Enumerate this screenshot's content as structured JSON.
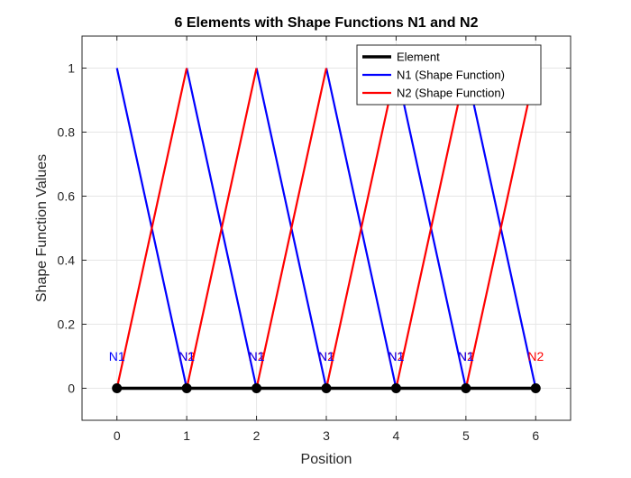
{
  "chart_data": {
    "type": "line",
    "title": "6 Elements with Shape Functions N1 and N2",
    "xlabel": "Position",
    "ylabel": "Shape Function Values",
    "xlim": [
      -0.5,
      6.5
    ],
    "ylim": [
      -0.1,
      1.1
    ],
    "xticks": [
      0,
      1,
      2,
      3,
      4,
      5,
      6
    ],
    "yticks": [
      0,
      0.2,
      0.4,
      0.6,
      0.8,
      1
    ],
    "xtick_labels": [
      "0",
      "1",
      "2",
      "3",
      "4",
      "5",
      "6"
    ],
    "ytick_labels": [
      "0",
      "0.2",
      "0.4",
      "0.6",
      "0.8",
      "1"
    ],
    "grid": true,
    "legend_position": "top-right",
    "series": [
      {
        "name": "Element",
        "color": "#000000",
        "x": [
          0,
          1,
          2,
          3,
          4,
          5,
          6
        ],
        "y": [
          0,
          0,
          0,
          0,
          0,
          0,
          0
        ]
      },
      {
        "name": "N1 (Shape Function)",
        "color": "#0000ff",
        "segments": [
          [
            [
              0,
              1
            ],
            [
              1,
              0
            ]
          ],
          [
            [
              1,
              1
            ],
            [
              2,
              0
            ]
          ],
          [
            [
              2,
              1
            ],
            [
              3,
              0
            ]
          ],
          [
            [
              3,
              1
            ],
            [
              4,
              0
            ]
          ],
          [
            [
              4,
              1
            ],
            [
              5,
              0
            ]
          ],
          [
            [
              5,
              1
            ],
            [
              6,
              0
            ]
          ]
        ]
      },
      {
        "name": "N2 (Shape Function)",
        "color": "#ff0000",
        "segments": [
          [
            [
              0,
              0
            ],
            [
              1,
              1
            ]
          ],
          [
            [
              1,
              0
            ],
            [
              2,
              1
            ]
          ],
          [
            [
              2,
              0
            ],
            [
              3,
              1
            ]
          ],
          [
            [
              3,
              0
            ],
            [
              4,
              1
            ]
          ],
          [
            [
              4,
              0
            ],
            [
              5,
              1
            ]
          ],
          [
            [
              5,
              0
            ],
            [
              6,
              1
            ]
          ]
        ]
      }
    ],
    "annotations": [
      {
        "text": "N1",
        "x": 0,
        "y": 0.1,
        "color": "#0000ff"
      },
      {
        "text": "N2",
        "x": 1,
        "y": 0.1,
        "color": "#ff0000"
      },
      {
        "text": "N1",
        "x": 1,
        "y": 0.1,
        "color": "#0000ff"
      },
      {
        "text": "N2",
        "x": 2,
        "y": 0.1,
        "color": "#ff0000"
      },
      {
        "text": "N1",
        "x": 2,
        "y": 0.1,
        "color": "#0000ff"
      },
      {
        "text": "N2",
        "x": 3,
        "y": 0.1,
        "color": "#ff0000"
      },
      {
        "text": "N1",
        "x": 3,
        "y": 0.1,
        "color": "#0000ff"
      },
      {
        "text": "N2",
        "x": 4,
        "y": 0.1,
        "color": "#ff0000"
      },
      {
        "text": "N1",
        "x": 4,
        "y": 0.1,
        "color": "#0000ff"
      },
      {
        "text": "N2",
        "x": 5,
        "y": 0.1,
        "color": "#ff0000"
      },
      {
        "text": "N1",
        "x": 5,
        "y": 0.1,
        "color": "#0000ff"
      },
      {
        "text": "N2",
        "x": 6,
        "y": 0.1,
        "color": "#ff0000"
      }
    ]
  }
}
